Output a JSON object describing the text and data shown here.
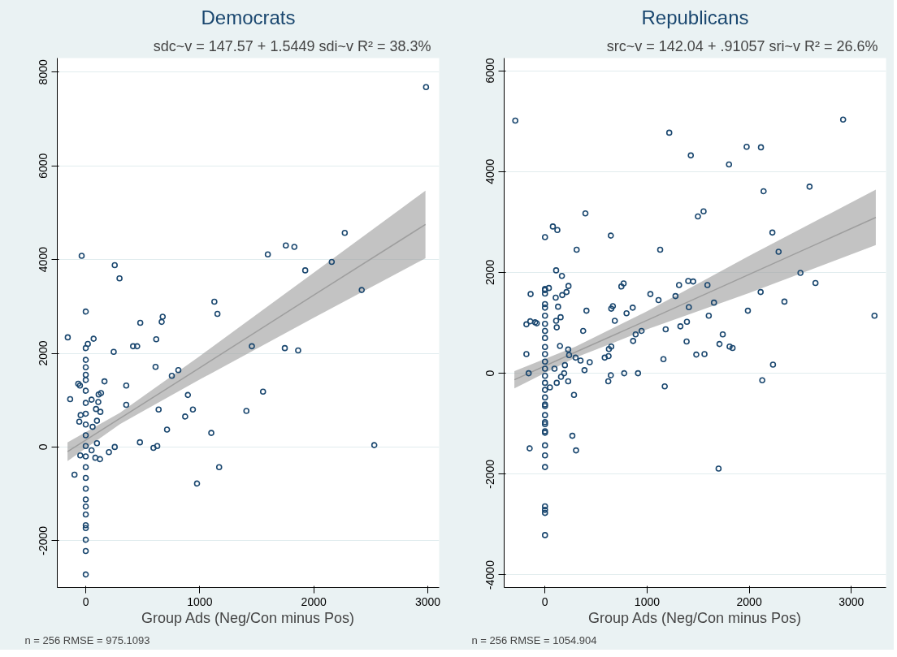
{
  "chart_data": [
    {
      "type": "scatter",
      "title": "Democrats",
      "subtitle": "sdc~v = 147.57 + 1.5449 sdi~v   R² = 38.3%",
      "xlabel": "Group Ads (Neg/Con minus Pos)",
      "annotations": [
        "n = 256   RMSE = 975.1093"
      ],
      "xlim": [
        -250,
        3100
      ],
      "ylim": [
        -3000,
        8300
      ],
      "xticks": [
        0,
        1000,
        2000,
        3000
      ],
      "yticks": [
        -2000,
        0,
        2000,
        4000,
        6000,
        8000
      ],
      "grid": "y",
      "series": [
        {
          "color": "#1a476f",
          "marker": "circle",
          "x": [
            2985,
            -36,
            254,
            296,
            0,
            -158,
            18,
            69,
            0,
            478,
            675,
            666,
            618,
            415,
            451,
            245,
            612,
            755,
            812,
            1128,
            1155,
            1597,
            1755,
            1830,
            2272,
            1925,
            2158,
            2421,
            1457,
            1746,
            1863,
            1555,
            1409,
            896,
            940,
            872,
            639,
            713,
            1101,
            355,
            355,
            164,
            -66,
            -51,
            -137,
            134,
            113,
            110,
            51,
            90,
            128,
            98,
            60,
            -45,
            -57,
            98,
            51,
            84,
            125,
            203,
            254,
            475,
            594,
            627,
            -48,
            -99,
            976,
            1170,
            2531,
            0,
            0,
            0,
            0,
            0,
            0,
            0,
            0,
            0,
            0,
            0,
            0,
            0,
            0,
            0,
            0,
            0,
            0,
            0,
            0,
            0,
            0
          ],
          "values": [
            7680,
            4080,
            3880,
            3600,
            2890,
            2340,
            2200,
            2310,
            2110,
            2650,
            2780,
            2670,
            2300,
            2150,
            2150,
            2030,
            1710,
            1520,
            1640,
            3100,
            2840,
            4110,
            4300,
            4270,
            4570,
            3770,
            3950,
            3350,
            2150,
            2110,
            2060,
            1180,
            770,
            1110,
            800,
            650,
            800,
            370,
            300,
            1310,
            900,
            1400,
            1350,
            1310,
            1020,
            1150,
            1120,
            960,
            1010,
            810,
            750,
            560,
            430,
            680,
            540,
            80,
            -70,
            -230,
            -260,
            -110,
            0,
            100,
            -20,
            20,
            -180,
            -590,
            -780,
            -430,
            40,
            1860,
            1700,
            1540,
            1430,
            1200,
            940,
            710,
            480,
            250,
            20,
            -200,
            -430,
            -660,
            -890,
            -1120,
            -1270,
            -1440,
            -1670,
            -1730,
            -1980,
            -2220,
            -2720
          ]
        },
        {
          "type": "line",
          "color": "#9e9e9e",
          "x": [
            -160,
            300,
            1000,
            2000,
            2980
          ],
          "values": [
            -100,
            610,
            1690,
            3240,
            4750
          ],
          "lower": [
            -300,
            490,
            1440,
            2760,
            4030
          ],
          "upper": [
            100,
            730,
            1940,
            3720,
            5470
          ]
        }
      ]
    },
    {
      "type": "scatter",
      "title": "Republicans",
      "subtitle": "src~v = 142.04 + .91057 sri~v   R² = 26.6%",
      "xlabel": "Group Ads (Neg/Con minus Pos)",
      "annotations": [
        "n = 256   RMSE = 1054.904"
      ],
      "xlim": [
        -400,
        3340
      ],
      "ylim": [
        -4250,
        6250
      ],
      "xticks": [
        0,
        1000,
        2000,
        3000
      ],
      "yticks": [
        -4000,
        -2000,
        0,
        2000,
        4000,
        6000
      ],
      "grid": "y",
      "series": [
        {
          "color": "#1a476f",
          "marker": "circle",
          "x": [
            -291,
            1217,
            1428,
            1975,
            2115,
            1802,
            2920,
            2141,
            2591,
            396,
            1498,
            1553,
            77,
            121,
            0,
            645,
            310,
            1128,
            2227,
            2288,
            109,
            166,
            2502,
            2649,
            2112,
            2345,
            1987,
            3227,
            38,
            230,
            211,
            169,
            105,
            -141,
            0,
            748,
            770,
            1032,
            1112,
            1278,
            1313,
            1403,
            1451,
            1591,
            1655,
            1409,
            1604,
            1390,
            1326,
            1182,
            946,
            888,
            863,
            665,
            649,
            859,
            799,
            684,
            406,
            374,
            128,
            153,
            109,
            115,
            -182,
            -144,
            -96,
            -80,
            -182,
            -160,
            147,
            227,
            236,
            300,
            348,
            438,
            585,
            623,
            626,
            649,
            1160,
            1387,
            1482,
            1562,
            1709,
            1741,
            1808,
            1837,
            2233,
            2128,
            1173,
            645,
            620,
            776,
            911,
            387,
            284,
            227,
            115,
            48,
            268,
            304,
            -150,
            1700,
            188,
            93,
            157,
            195,
            0,
            0,
            0,
            0,
            0,
            0,
            0,
            0,
            0,
            0,
            0,
            0,
            0,
            0,
            0,
            0,
            0,
            0,
            0,
            0,
            0,
            0,
            0,
            0,
            0,
            0,
            0,
            0,
            0,
            0
          ],
          "values": [
            5010,
            4770,
            4320,
            4490,
            4480,
            4140,
            5030,
            3610,
            3700,
            3170,
            3110,
            3210,
            2910,
            2840,
            2700,
            2730,
            2450,
            2450,
            2790,
            2410,
            2040,
            1930,
            1990,
            1790,
            1610,
            1420,
            1240,
            1140,
            1690,
            1730,
            1610,
            1550,
            1500,
            1570,
            1650,
            1720,
            1780,
            1570,
            1450,
            1530,
            1750,
            1830,
            1820,
            1750,
            1400,
            1310,
            1140,
            1020,
            930,
            870,
            840,
            770,
            640,
            1330,
            1280,
            1300,
            1190,
            1040,
            1240,
            840,
            1320,
            1110,
            1040,
            910,
            970,
            1030,
            1010,
            990,
            380,
            0,
            540,
            470,
            360,
            310,
            250,
            220,
            310,
            340,
            480,
            530,
            280,
            630,
            370,
            380,
            580,
            770,
            530,
            500,
            170,
            -140,
            -260,
            -40,
            -160,
            0,
            0,
            60,
            -430,
            -160,
            -190,
            -280,
            -1240,
            -1530,
            -1490,
            -1890,
            0,
            90,
            -70,
            160,
            1670,
            1580,
            1370,
            1300,
            1140,
            980,
            840,
            700,
            520,
            380,
            230,
            90,
            -50,
            -190,
            -330,
            -480,
            -620,
            -650,
            -830,
            -970,
            -1010,
            -1150,
            -1180,
            -1430,
            -1630,
            -1860,
            -2640,
            -2710,
            -2770,
            -3210
          ]
        },
        {
          "type": "line",
          "color": "#9e9e9e",
          "x": [
            -300,
            300,
            1000,
            2000,
            3240
          ],
          "values": [
            -130,
            420,
            1050,
            1960,
            3090
          ],
          "lower": [
            -300,
            310,
            870,
            1590,
            2540
          ],
          "upper": [
            40,
            530,
            1230,
            2330,
            3640
          ]
        }
      ]
    }
  ]
}
